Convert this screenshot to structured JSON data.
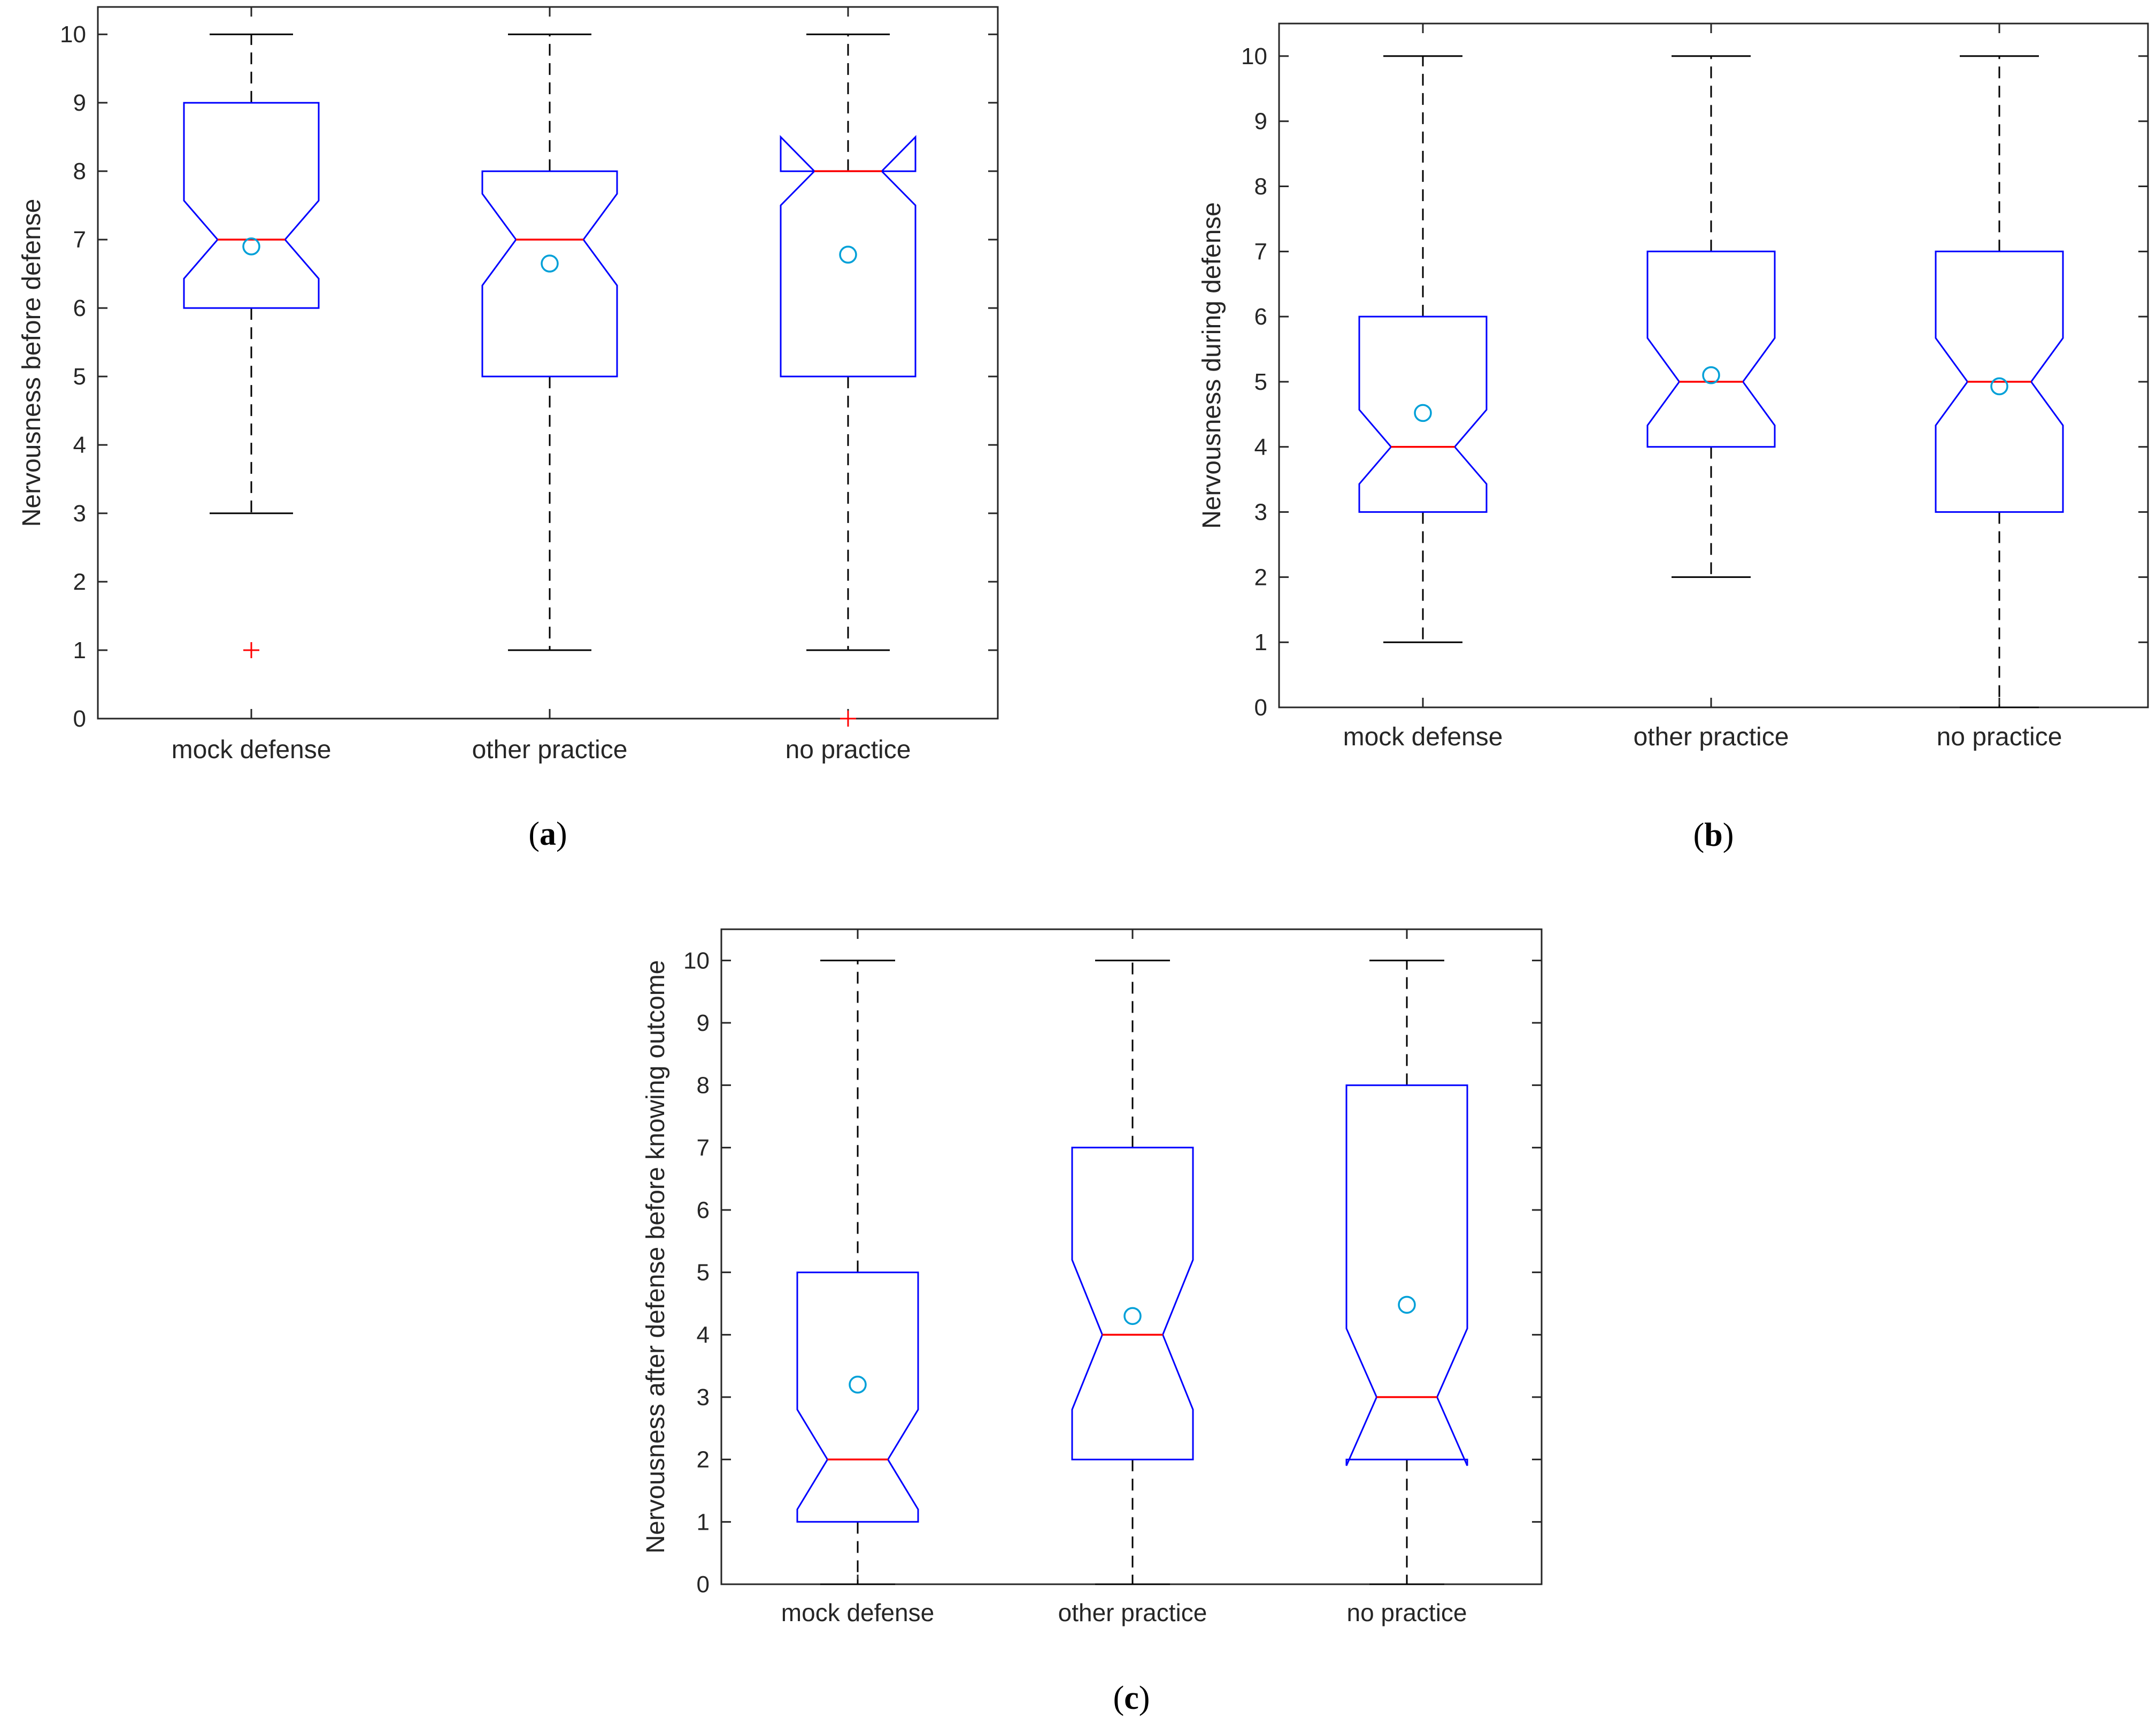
{
  "colors": {
    "box": "#0000ff",
    "median": "#ff0000",
    "whisker": "#000000",
    "outlier": "#ff0000",
    "mean": "#00a0d8",
    "axis": "#262626",
    "tick": "#262626"
  },
  "chart_data": [
    {
      "type": "boxplot",
      "panel_label": "(a)",
      "panel_letter": "a",
      "ylabel": "Nervousness before defense",
      "categories": [
        "mock defense",
        "other practice",
        "no practice"
      ],
      "ylim": [
        0,
        10.4
      ],
      "yticks": [
        "0",
        "1",
        "2",
        "3",
        "4",
        "5",
        "6",
        "7",
        "8",
        "9",
        "10"
      ],
      "boxes": [
        {
          "q1": 6,
          "median": 7,
          "q3": 9,
          "whisker_low": 3,
          "whisker_high": 10,
          "notch_low": 6.43,
          "notch_high": 7.57,
          "mean": 6.9,
          "outliers": [
            1
          ]
        },
        {
          "q1": 5,
          "median": 7,
          "q3": 8,
          "whisker_low": 1,
          "whisker_high": 10,
          "notch_low": 6.33,
          "notch_high": 7.67,
          "mean": 6.65,
          "outliers": []
        },
        {
          "q1": 5,
          "median": 8,
          "q3": 8,
          "whisker_low": 1,
          "whisker_high": 10,
          "notch_low": 7.5,
          "notch_high": 8.5,
          "mean": 6.78,
          "outliers": [
            0
          ]
        }
      ]
    },
    {
      "type": "boxplot",
      "panel_label": "(b)",
      "panel_letter": "b",
      "ylabel": "Nervousness during defense",
      "categories": [
        "mock defense",
        "other practice",
        "no practice"
      ],
      "ylim": [
        0,
        10.5
      ],
      "yticks": [
        "0",
        "1",
        "2",
        "3",
        "4",
        "5",
        "6",
        "7",
        "8",
        "9",
        "10"
      ],
      "boxes": [
        {
          "q1": 3,
          "median": 4,
          "q3": 6,
          "whisker_low": 1,
          "whisker_high": 10,
          "notch_low": 3.43,
          "notch_high": 4.57,
          "mean": 4.52,
          "outliers": []
        },
        {
          "q1": 4,
          "median": 5,
          "q3": 7,
          "whisker_low": 2,
          "whisker_high": 10,
          "notch_low": 4.33,
          "notch_high": 5.67,
          "mean": 5.1,
          "outliers": []
        },
        {
          "q1": 3,
          "median": 5,
          "q3": 7,
          "whisker_low": 0,
          "whisker_high": 10,
          "notch_low": 4.33,
          "notch_high": 5.67,
          "mean": 4.93,
          "outliers": []
        }
      ]
    },
    {
      "type": "boxplot",
      "panel_label": "(c)",
      "panel_letter": "c",
      "ylabel": "Nervousness after defense before knowing outcome",
      "categories": [
        "mock defense",
        "other practice",
        "no practice"
      ],
      "ylim": [
        0,
        10.5
      ],
      "yticks": [
        "0",
        "1",
        "2",
        "3",
        "4",
        "5",
        "6",
        "7",
        "8",
        "9",
        "10"
      ],
      "boxes": [
        {
          "q1": 1,
          "median": 2,
          "q3": 5,
          "whisker_low": 0,
          "whisker_high": 10,
          "notch_low": 1.2,
          "notch_high": 2.8,
          "mean": 3.2,
          "outliers": []
        },
        {
          "q1": 2,
          "median": 4,
          "q3": 7,
          "whisker_low": 0,
          "whisker_high": 10,
          "notch_low": 2.8,
          "notch_high": 5.2,
          "mean": 4.3,
          "outliers": []
        },
        {
          "q1": 2,
          "median": 3,
          "q3": 8,
          "whisker_low": 0,
          "whisker_high": 10,
          "notch_low": 1.9,
          "notch_high": 4.1,
          "mean": 4.48,
          "outliers": []
        }
      ]
    }
  ]
}
